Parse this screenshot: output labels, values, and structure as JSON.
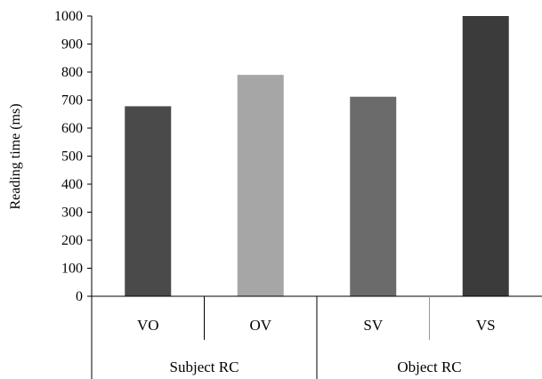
{
  "chart_data": {
    "type": "bar",
    "categories": [
      "VO",
      "OV",
      "SV",
      "VS"
    ],
    "groups": [
      {
        "label": "Subject RC",
        "categories": [
          "VO",
          "OV"
        ]
      },
      {
        "label": "Object RC",
        "categories": [
          "SV",
          "VS"
        ]
      }
    ],
    "values": [
      678,
      790,
      712,
      1003
    ],
    "bar_colors": [
      "#4a4a4a",
      "#a6a6a6",
      "#6b6b6b",
      "#3b3b3b"
    ],
    "ylabel": "Reading time (ms)",
    "xlabel": "",
    "ylim": [
      0,
      1000
    ],
    "yticks": [
      0,
      100,
      200,
      300,
      400,
      500,
      600,
      700,
      800,
      900,
      1000
    ],
    "grid": false,
    "legend": "none"
  }
}
